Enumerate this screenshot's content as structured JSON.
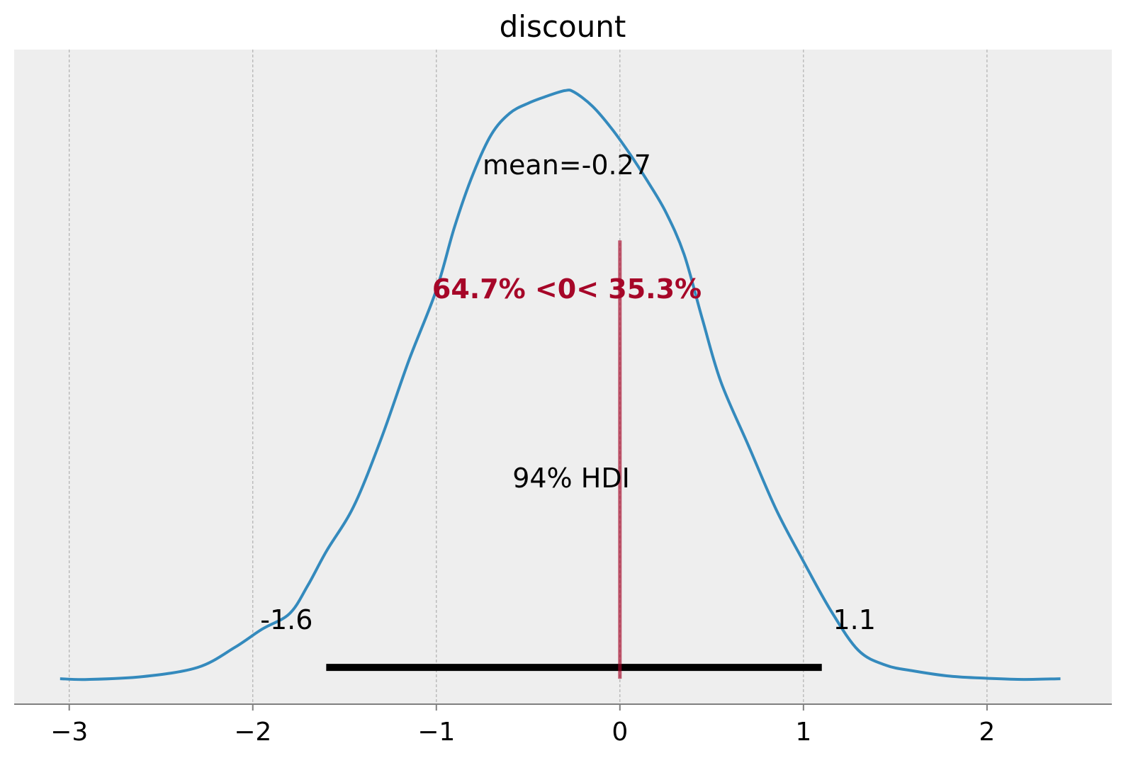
{
  "chart_data": {
    "type": "area",
    "title": "discount",
    "xlabel": "",
    "ylabel": "",
    "xlim": [
      -3.3,
      2.68
    ],
    "ylim": [
      -0.018,
      0.445
    ],
    "x_ticks": [
      -3,
      -2,
      -1,
      0,
      1,
      2
    ],
    "x_tick_labels": [
      "−3",
      "−2",
      "−1",
      "0",
      "1",
      "2"
    ],
    "grid": "x-dashed",
    "y_axis_visible": false,
    "series": [
      {
        "color": "#348abd",
        "x": [
          -3.05,
          -2.9,
          -2.6,
          -2.3,
          -2.1,
          -1.95,
          -1.8,
          -1.7,
          -1.6,
          -1.45,
          -1.3,
          -1.15,
          -1.0,
          -0.9,
          -0.8,
          -0.7,
          -0.6,
          -0.5,
          -0.4,
          -0.3,
          -0.25,
          -0.15,
          -0.05,
          0.05,
          0.15,
          0.25,
          0.35,
          0.45,
          0.55,
          0.7,
          0.85,
          1.0,
          1.15,
          1.3,
          1.45,
          1.6,
          1.8,
          2.0,
          2.2,
          2.4
        ],
        "y": [
          0.0,
          -0.0005,
          0.0015,
          0.008,
          0.022,
          0.035,
          0.046,
          0.066,
          0.09,
          0.122,
          0.17,
          0.225,
          0.275,
          0.32,
          0.357,
          0.385,
          0.4,
          0.407,
          0.412,
          0.416,
          0.415,
          0.405,
          0.39,
          0.372,
          0.352,
          0.33,
          0.3,
          0.254,
          0.21,
          0.165,
          0.12,
          0.083,
          0.048,
          0.02,
          0.0095,
          0.0055,
          0.0018,
          0.0003,
          -0.0005,
          0.0
        ]
      }
    ],
    "hdi": {
      "label": "94% HDI",
      "low": -1.6,
      "high": 1.1,
      "low_label": "-1.6",
      "high_label": "1.1",
      "color": "#000000"
    },
    "mean": {
      "label": "mean=-0.27",
      "value": -0.27
    },
    "reference": {
      "value": 0,
      "label": "64.7% <0< 35.3%",
      "color": "#a60628",
      "line_top": 0.31
    }
  }
}
